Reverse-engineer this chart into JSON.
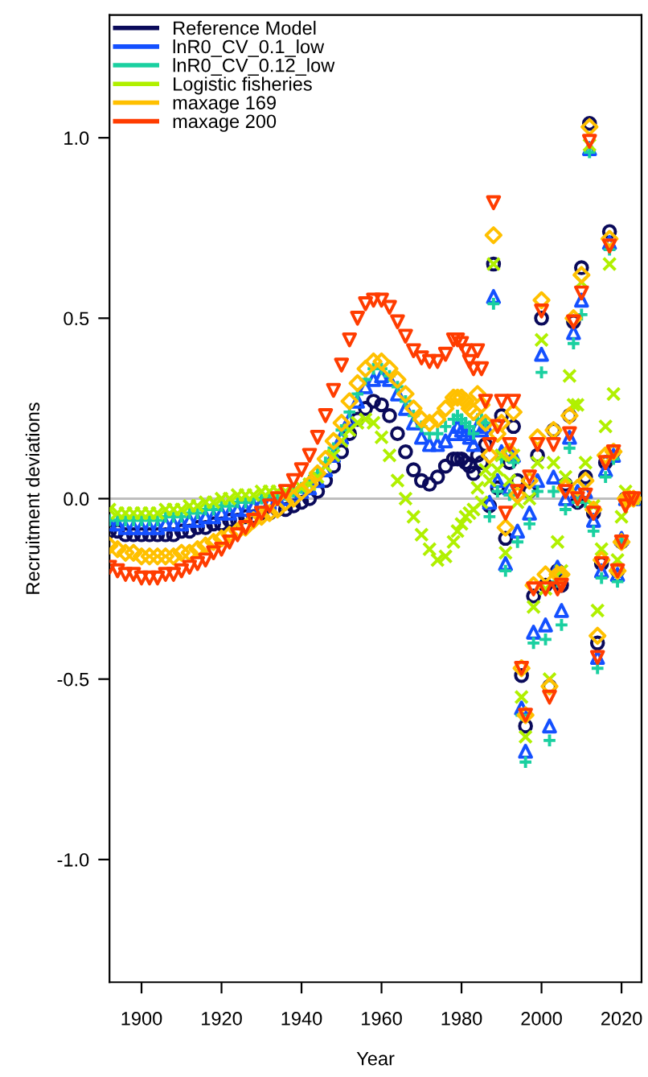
{
  "chart_data": {
    "type": "scatter",
    "xlabel": "Year",
    "ylabel": "Recruitment deviations",
    "x": [
      1892,
      1894,
      1896,
      1898,
      1900,
      1902,
      1904,
      1906,
      1908,
      1910,
      1912,
      1914,
      1916,
      1918,
      1920,
      1922,
      1924,
      1926,
      1928,
      1930,
      1932,
      1934,
      1936,
      1938,
      1940,
      1942,
      1944,
      1946,
      1948,
      1950,
      1952,
      1954,
      1956,
      1958,
      1960,
      1962,
      1964,
      1966,
      1968,
      1970,
      1972,
      1974,
      1976,
      1978,
      1979,
      1980,
      1981,
      1982,
      1983,
      1984,
      1985,
      1986,
      1987,
      1988,
      1989,
      1990,
      1991,
      1992,
      1993,
      1994,
      1995,
      1996,
      1997,
      1998,
      1999,
      2000,
      2001,
      2002,
      2003,
      2004,
      2005,
      2006,
      2007,
      2008,
      2009,
      2010,
      2011,
      2012,
      2013,
      2014,
      2015,
      2016,
      2017,
      2018,
      2019,
      2020,
      2021,
      2022,
      2023
    ],
    "series": [
      {
        "name": "Reference Model",
        "color": "#0a0a5a",
        "marker": "circle",
        "values": [
          -0.09,
          -0.09,
          -0.1,
          -0.1,
          -0.1,
          -0.1,
          -0.1,
          -0.1,
          -0.1,
          -0.09,
          -0.09,
          -0.08,
          -0.08,
          -0.07,
          -0.07,
          -0.06,
          -0.06,
          -0.05,
          -0.05,
          -0.04,
          -0.04,
          -0.03,
          -0.03,
          -0.02,
          -0.01,
          0.0,
          0.02,
          0.05,
          0.09,
          0.13,
          0.18,
          0.22,
          0.25,
          0.27,
          0.26,
          0.23,
          0.18,
          0.13,
          0.08,
          0.05,
          0.04,
          0.06,
          0.09,
          0.11,
          0.11,
          0.11,
          0.1,
          0.09,
          0.07,
          0.12,
          0.1,
          0.15,
          -0.02,
          0.65,
          0.03,
          0.23,
          -0.11,
          0.1,
          0.2,
          0.05,
          -0.49,
          -0.63,
          0.02,
          -0.27,
          0.12,
          0.5,
          -0.24,
          -0.52,
          0.19,
          -0.2,
          -0.24,
          0.04,
          0.23,
          0.49,
          -0.01,
          0.64,
          0.06,
          1.04,
          -0.04,
          -0.4,
          -0.18,
          0.1,
          0.74,
          0.13,
          -0.2,
          -0.12,
          0.0,
          null,
          null
        ]
      },
      {
        "name": "lnR0_CV_0.1_low",
        "color": "#1450ff",
        "marker": "triangle",
        "values": [
          -0.07,
          -0.07,
          -0.08,
          -0.08,
          -0.08,
          -0.08,
          -0.08,
          -0.07,
          -0.07,
          -0.07,
          -0.06,
          -0.06,
          -0.05,
          -0.05,
          -0.04,
          -0.04,
          -0.03,
          -0.03,
          -0.02,
          -0.01,
          -0.01,
          0.0,
          0.0,
          0.01,
          0.02,
          0.03,
          0.05,
          0.08,
          0.12,
          0.17,
          0.22,
          0.27,
          0.31,
          0.33,
          0.34,
          0.33,
          0.29,
          0.25,
          0.21,
          0.17,
          0.15,
          0.15,
          0.16,
          0.18,
          0.2,
          0.19,
          0.18,
          0.17,
          0.15,
          0.2,
          0.19,
          0.2,
          -0.01,
          0.56,
          0.05,
          0.13,
          -0.18,
          0.03,
          0.12,
          -0.09,
          -0.58,
          -0.7,
          -0.04,
          -0.37,
          0.05,
          0.4,
          -0.35,
          -0.63,
          0.06,
          -0.19,
          -0.31,
          0.0,
          0.17,
          0.46,
          0.02,
          0.55,
          0.02,
          0.97,
          -0.06,
          -0.44,
          -0.2,
          0.08,
          0.71,
          0.12,
          -0.21,
          -0.11,
          0.0,
          null,
          0.0
        ]
      },
      {
        "name": "lnR0_CV_0.12_low",
        "color": "#1ad0a0",
        "marker": "plus",
        "values": [
          -0.06,
          -0.06,
          -0.06,
          -0.06,
          -0.06,
          -0.06,
          -0.06,
          -0.05,
          -0.05,
          -0.05,
          -0.04,
          -0.04,
          -0.03,
          -0.03,
          -0.02,
          -0.02,
          -0.01,
          -0.01,
          0.0,
          0.0,
          0.01,
          0.01,
          0.01,
          0.02,
          0.03,
          0.05,
          0.07,
          0.1,
          0.14,
          0.19,
          0.24,
          0.29,
          0.33,
          0.36,
          0.36,
          0.34,
          0.31,
          0.27,
          0.23,
          0.2,
          0.18,
          0.18,
          0.2,
          0.22,
          0.23,
          0.22,
          0.21,
          0.2,
          0.18,
          0.22,
          0.22,
          0.21,
          -0.05,
          0.54,
          0.02,
          0.11,
          -0.2,
          0.01,
          0.1,
          -0.12,
          -0.6,
          -0.73,
          -0.07,
          -0.4,
          0.02,
          0.35,
          -0.39,
          -0.67,
          0.02,
          -0.23,
          -0.35,
          -0.03,
          0.14,
          0.43,
          -0.01,
          0.51,
          -0.01,
          0.96,
          -0.09,
          -0.47,
          -0.22,
          0.06,
          0.69,
          0.11,
          -0.23,
          -0.12,
          -0.01,
          null,
          0.0
        ]
      },
      {
        "name": "Logistic fisheries",
        "color": "#b0f000",
        "marker": "cross",
        "values": [
          -0.03,
          -0.04,
          -0.04,
          -0.04,
          -0.04,
          -0.04,
          -0.04,
          -0.03,
          -0.03,
          -0.03,
          -0.02,
          -0.02,
          -0.01,
          -0.01,
          0.0,
          0.0,
          0.01,
          0.01,
          0.01,
          0.02,
          0.02,
          0.02,
          0.02,
          0.02,
          0.03,
          0.04,
          0.06,
          0.09,
          0.12,
          0.16,
          0.19,
          0.21,
          0.22,
          0.21,
          0.17,
          0.12,
          0.05,
          0.0,
          -0.05,
          -0.1,
          -0.14,
          -0.17,
          -0.16,
          -0.12,
          -0.09,
          -0.07,
          -0.05,
          -0.04,
          -0.03,
          0.03,
          -0.01,
          0.08,
          0.05,
          0.65,
          0.08,
          0.12,
          -0.15,
          0.05,
          0.12,
          -0.01,
          -0.55,
          -0.66,
          0.0,
          -0.3,
          0.1,
          0.44,
          -0.25,
          -0.5,
          0.1,
          -0.12,
          -0.2,
          0.06,
          0.34,
          0.26,
          0.26,
          0.6,
          0.1,
          0.98,
          -0.02,
          -0.31,
          -0.14,
          0.2,
          0.65,
          0.29,
          -0.17,
          -0.05,
          0.02,
          0.0,
          0.0
        ]
      },
      {
        "name": "maxage 169",
        "color": "#ffc000",
        "marker": "diamond",
        "values": [
          -0.13,
          -0.14,
          -0.15,
          -0.15,
          -0.16,
          -0.16,
          -0.16,
          -0.16,
          -0.16,
          -0.15,
          -0.15,
          -0.14,
          -0.13,
          -0.12,
          -0.11,
          -0.1,
          -0.09,
          -0.08,
          -0.06,
          -0.05,
          -0.04,
          -0.03,
          -0.01,
          0.0,
          0.02,
          0.04,
          0.07,
          0.11,
          0.16,
          0.21,
          0.27,
          0.32,
          0.36,
          0.38,
          0.38,
          0.36,
          0.33,
          0.29,
          0.25,
          0.22,
          0.21,
          0.22,
          0.25,
          0.28,
          0.28,
          0.28,
          0.27,
          0.25,
          0.24,
          0.29,
          0.26,
          0.21,
          0.12,
          0.73,
          0.18,
          0.21,
          -0.08,
          0.13,
          0.24,
          0.01,
          -0.47,
          -0.6,
          0.05,
          -0.24,
          0.17,
          0.55,
          -0.21,
          -0.52,
          0.19,
          -0.21,
          -0.21,
          0.03,
          0.23,
          0.5,
          0.03,
          0.62,
          0.05,
          1.03,
          -0.03,
          -0.38,
          -0.17,
          0.12,
          0.72,
          0.13,
          -0.2,
          -0.12,
          0.0,
          0.0,
          0.0
        ]
      },
      {
        "name": "maxage 200",
        "color": "#ff3c00",
        "marker": "triangle_down",
        "values": [
          -0.19,
          -0.2,
          -0.21,
          -0.21,
          -0.22,
          -0.22,
          -0.22,
          -0.21,
          -0.21,
          -0.2,
          -0.19,
          -0.18,
          -0.17,
          -0.15,
          -0.14,
          -0.12,
          -0.1,
          -0.08,
          -0.06,
          -0.04,
          -0.02,
          0.0,
          0.02,
          0.05,
          0.08,
          0.12,
          0.17,
          0.23,
          0.3,
          0.37,
          0.44,
          0.5,
          0.54,
          0.55,
          0.55,
          0.53,
          0.49,
          0.45,
          0.41,
          0.39,
          0.38,
          0.38,
          0.4,
          0.44,
          0.44,
          0.43,
          0.41,
          0.38,
          0.36,
          0.41,
          0.36,
          0.27,
          0.15,
          0.82,
          0.2,
          0.27,
          -0.04,
          0.15,
          0.27,
          0.02,
          -0.47,
          -0.6,
          0.06,
          -0.25,
          0.15,
          0.52,
          -0.25,
          -0.55,
          0.15,
          -0.25,
          -0.24,
          0.02,
          0.18,
          0.49,
          0.0,
          0.57,
          0.01,
          0.99,
          -0.04,
          -0.44,
          -0.18,
          0.1,
          0.7,
          0.13,
          -0.2,
          -0.12,
          -0.02,
          0.0,
          0.0
        ]
      }
    ],
    "xlim": [
      1892,
      2025
    ],
    "ylim": [
      -1.34,
      1.34
    ],
    "xticks": [
      1900,
      1920,
      1940,
      1960,
      1980,
      2000,
      2020
    ],
    "yticks": [
      {
        "value": -1.0,
        "label": "-1.0"
      },
      {
        "value": -0.5,
        "label": "-0.5"
      },
      {
        "value": 0.0,
        "label": "0.0"
      },
      {
        "value": 0.5,
        "label": "0.5"
      },
      {
        "value": 1.0,
        "label": "1.0"
      }
    ],
    "ref_lines": [
      {
        "axis": "y",
        "value": 0,
        "color": "#bebebe",
        "line_style": "solid"
      }
    ],
    "legend": "top left",
    "grid": false
  }
}
